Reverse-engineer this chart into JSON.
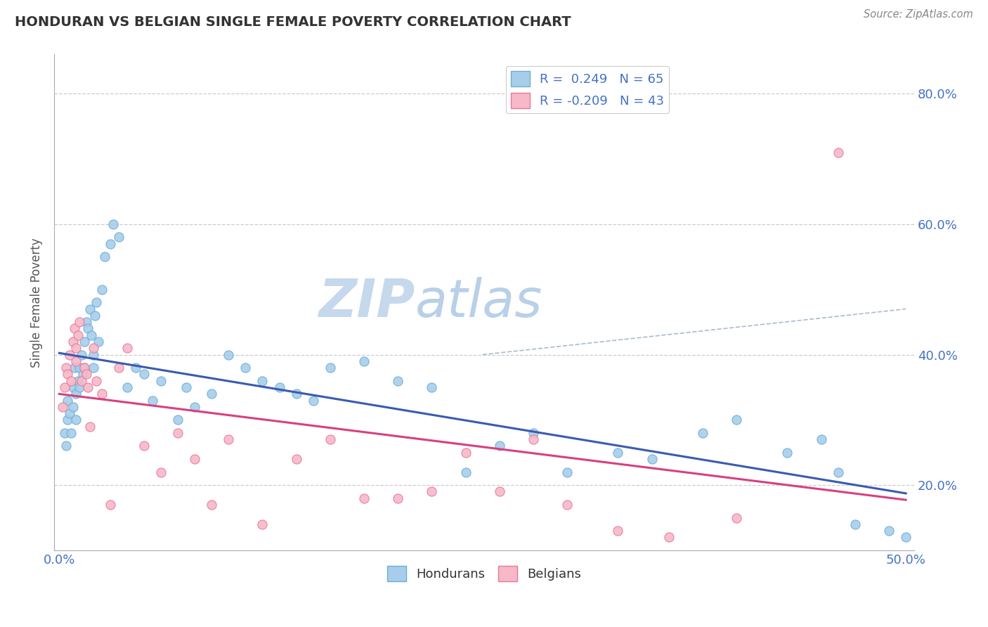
{
  "title": "HONDURAN VS BELGIAN SINGLE FEMALE POVERTY CORRELATION CHART",
  "source": "Source: ZipAtlas.com",
  "ylabel": "Single Female Poverty",
  "xlim": [
    0.0,
    50.0
  ],
  "ylim": [
    10.0,
    85.0
  ],
  "y_ticks": [
    20.0,
    40.0,
    60.0,
    80.0
  ],
  "y_tick_labels": [
    "20.0%",
    "40.0%",
    "60.0%",
    "80.0%"
  ],
  "honduran_color": "#A8CDEA",
  "honduran_edge": "#6AAED6",
  "belgian_color": "#F7B8C8",
  "belgian_edge": "#E87898",
  "trend_honduran_color": "#3A5BAF",
  "trend_belgian_color": "#D84080",
  "dashed_line_color": "#AABBCC",
  "watermark_color": "#C5D8EC",
  "legend_color": "#4472C4",
  "R_honduran": 0.249,
  "N_honduran": 65,
  "R_belgian": -0.209,
  "N_belgian": 43,
  "honduran_x": [
    0.3,
    0.4,
    0.5,
    0.5,
    0.6,
    0.7,
    0.8,
    0.8,
    0.9,
    1.0,
    1.0,
    1.1,
    1.2,
    1.2,
    1.3,
    1.4,
    1.5,
    1.5,
    1.6,
    1.7,
    1.8,
    1.9,
    2.0,
    2.0,
    2.1,
    2.2,
    2.3,
    2.5,
    2.7,
    3.0,
    3.2,
    3.5,
    4.0,
    4.5,
    5.0,
    5.5,
    6.0,
    7.0,
    7.5,
    8.0,
    9.0,
    10.0,
    11.0,
    12.0,
    13.0,
    14.0,
    15.0,
    16.0,
    18.0,
    20.0,
    22.0,
    24.0,
    26.0,
    28.0,
    30.0,
    33.0,
    35.0,
    38.0,
    40.0,
    43.0,
    45.0,
    46.0,
    47.0,
    49.0,
    50.0
  ],
  "honduran_y": [
    28.0,
    26.0,
    30.0,
    33.0,
    31.0,
    28.0,
    35.0,
    32.0,
    38.0,
    30.0,
    34.0,
    36.0,
    38.0,
    35.0,
    40.0,
    37.0,
    42.0,
    38.0,
    45.0,
    44.0,
    47.0,
    43.0,
    40.0,
    38.0,
    46.0,
    48.0,
    42.0,
    50.0,
    55.0,
    57.0,
    60.0,
    58.0,
    35.0,
    38.0,
    37.0,
    33.0,
    36.0,
    30.0,
    35.0,
    32.0,
    34.0,
    40.0,
    38.0,
    36.0,
    35.0,
    34.0,
    33.0,
    38.0,
    39.0,
    36.0,
    35.0,
    22.0,
    26.0,
    28.0,
    22.0,
    25.0,
    24.0,
    28.0,
    30.0,
    25.0,
    27.0,
    22.0,
    14.0,
    13.0,
    12.0
  ],
  "belgian_x": [
    0.2,
    0.3,
    0.4,
    0.5,
    0.6,
    0.7,
    0.8,
    0.9,
    1.0,
    1.0,
    1.1,
    1.2,
    1.3,
    1.5,
    1.6,
    1.7,
    1.8,
    2.0,
    2.2,
    2.5,
    3.0,
    3.5,
    4.0,
    5.0,
    6.0,
    7.0,
    8.0,
    9.0,
    10.0,
    12.0,
    14.0,
    16.0,
    18.0,
    20.0,
    22.0,
    24.0,
    26.0,
    28.0,
    30.0,
    33.0,
    36.0,
    40.0,
    46.0
  ],
  "belgian_y": [
    32.0,
    35.0,
    38.0,
    37.0,
    40.0,
    36.0,
    42.0,
    44.0,
    41.0,
    39.0,
    43.0,
    45.0,
    36.0,
    38.0,
    37.0,
    35.0,
    29.0,
    41.0,
    36.0,
    34.0,
    17.0,
    38.0,
    41.0,
    26.0,
    22.0,
    28.0,
    24.0,
    17.0,
    27.0,
    14.0,
    24.0,
    27.0,
    18.0,
    18.0,
    19.0,
    25.0,
    19.0,
    27.0,
    17.0,
    13.0,
    12.0,
    15.0,
    71.0
  ]
}
